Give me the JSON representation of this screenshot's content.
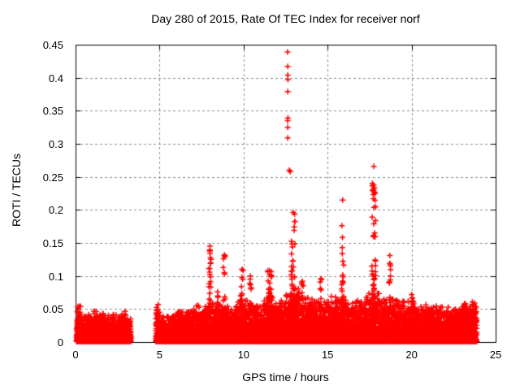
{
  "chart_data": {
    "type": "scatter",
    "title": "Day 280 of 2015, Rate Of TEC Index for receiver norf",
    "xlabel": "GPS time / hours",
    "ylabel": "ROTI / TECUs",
    "xlim": [
      0,
      25
    ],
    "ylim": [
      0,
      0.45
    ],
    "xticks": [
      0,
      5,
      10,
      15,
      20,
      25
    ],
    "xtick_labels": [
      "0",
      "5",
      "10",
      "15",
      "20",
      "25"
    ],
    "yticks": [
      0,
      0.05,
      0.1,
      0.15,
      0.2,
      0.25,
      0.3,
      0.35,
      0.4,
      0.45
    ],
    "ytick_labels": [
      "0",
      "0.05",
      "0.1",
      "0.15",
      "0.2",
      "0.25",
      "0.3",
      "0.35",
      "0.4",
      "0.45"
    ],
    "grid": "dashed",
    "grid_color": "#8c8c8c",
    "axis_color": "#000000",
    "background_color": "#ffffff",
    "marker": "plus",
    "marker_color": "#ff0000",
    "data_start_hour": 0.05,
    "data_end_hour": 23.88,
    "data_gap_hours": [
      3.3,
      4.78
    ],
    "max_point": [
      12.62,
      0.439
    ],
    "scatter_model": {
      "seed": 2015280,
      "band_floor": 0.001,
      "band_density_per_hour": 520,
      "band_segments": [
        [
          0.05,
          0.35,
          0.05
        ],
        [
          0.35,
          1.05,
          0.038
        ],
        [
          1.05,
          1.65,
          0.043
        ],
        [
          1.65,
          2.25,
          0.04
        ],
        [
          2.25,
          2.75,
          0.038
        ],
        [
          2.75,
          3.1,
          0.047
        ],
        [
          3.1,
          3.3,
          0.036
        ],
        [
          4.78,
          5.0,
          0.056
        ],
        [
          5.0,
          5.8,
          0.036
        ],
        [
          5.8,
          6.6,
          0.042
        ],
        [
          6.6,
          7.2,
          0.046
        ],
        [
          7.2,
          7.8,
          0.052
        ],
        [
          7.8,
          8.35,
          0.058
        ],
        [
          8.35,
          9.05,
          0.052
        ],
        [
          9.05,
          9.6,
          0.05
        ],
        [
          9.6,
          10.6,
          0.058
        ],
        [
          10.6,
          11.2,
          0.052
        ],
        [
          11.2,
          12.1,
          0.062
        ],
        [
          12.1,
          12.5,
          0.058
        ],
        [
          12.5,
          13.35,
          0.075
        ],
        [
          13.35,
          14.1,
          0.062
        ],
        [
          14.1,
          15.2,
          0.056
        ],
        [
          15.2,
          16.2,
          0.064
        ],
        [
          16.2,
          17.2,
          0.058
        ],
        [
          17.2,
          18.2,
          0.068
        ],
        [
          18.2,
          19.2,
          0.06
        ],
        [
          19.2,
          20.3,
          0.057
        ],
        [
          20.3,
          21.5,
          0.052
        ],
        [
          21.5,
          22.8,
          0.049
        ],
        [
          22.8,
          23.88,
          0.056
        ]
      ],
      "spikes": [
        [
          8.0,
          0.145,
          30,
          0.07
        ],
        [
          8.45,
          0.076,
          12,
          0.05
        ],
        [
          8.85,
          0.132,
          14,
          0.06
        ],
        [
          9.9,
          0.11,
          16,
          0.08
        ],
        [
          10.4,
          0.1,
          12,
          0.06
        ],
        [
          11.55,
          0.108,
          30,
          0.11
        ],
        [
          12.95,
          0.196,
          42,
          0.11
        ],
        [
          13.5,
          0.092,
          16,
          0.07
        ],
        [
          14.6,
          0.096,
          10,
          0.05
        ],
        [
          15.9,
          0.215,
          24,
          0.07
        ],
        [
          17.75,
          0.266,
          60,
          0.12
        ],
        [
          18.7,
          0.131,
          18,
          0.05
        ],
        [
          20.0,
          0.072,
          10,
          0.06
        ],
        [
          23.2,
          0.058,
          8,
          0.08
        ]
      ],
      "outlier_points": [
        [
          12.62,
          0.439
        ],
        [
          12.63,
          0.417
        ],
        [
          12.63,
          0.404
        ],
        [
          12.64,
          0.397
        ],
        [
          12.63,
          0.379
        ],
        [
          12.64,
          0.339
        ],
        [
          12.62,
          0.335
        ],
        [
          12.63,
          0.325
        ],
        [
          12.63,
          0.309
        ],
        [
          12.72,
          0.26
        ],
        [
          12.78,
          0.258
        ]
      ]
    }
  }
}
